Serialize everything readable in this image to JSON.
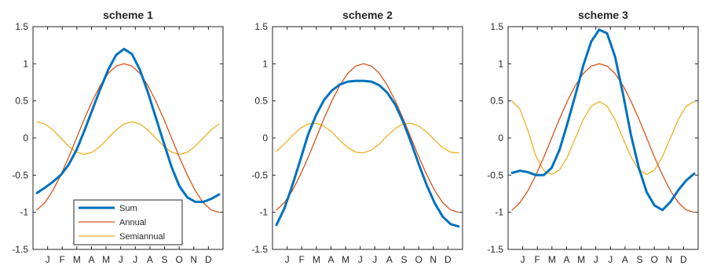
{
  "chart_data": [
    {
      "type": "line",
      "title": "scheme 1",
      "xlabel": "",
      "ylabel": "",
      "x_ticks": [
        "J",
        "F",
        "M",
        "A",
        "M",
        "J",
        "J",
        "A",
        "S",
        "O",
        "N",
        "D"
      ],
      "ylim": [
        -1.5,
        1.5
      ],
      "yticks": [
        "1.5",
        "1",
        "0.5",
        "0",
        "-0.5",
        "-1",
        "-1.5"
      ],
      "grid": false,
      "legend": {
        "placement": "bottom-left",
        "entries": [
          "Sum",
          "Annual",
          "Semiannual"
        ]
      },
      "series": [
        {
          "name": "Sum",
          "color": "#0072BD",
          "values": [
            -0.74,
            -0.67,
            -0.59,
            -0.5,
            -0.36,
            -0.16,
            0.1,
            0.38,
            0.66,
            0.92,
            1.12,
            1.2,
            1.13,
            0.92,
            0.62,
            0.28,
            -0.06,
            -0.39,
            -0.65,
            -0.8,
            -0.86,
            -0.86,
            -0.82,
            -0.76
          ]
        },
        {
          "name": "Annual",
          "color": "#D95319",
          "values": [
            -0.97,
            -0.87,
            -0.71,
            -0.5,
            -0.26,
            0.0,
            0.26,
            0.5,
            0.71,
            0.87,
            0.97,
            1.0,
            0.97,
            0.87,
            0.71,
            0.5,
            0.26,
            0.0,
            -0.26,
            -0.5,
            -0.71,
            -0.87,
            -0.97,
            -1.0
          ]
        },
        {
          "name": "Semiannual",
          "color": "#EDB120",
          "values": [
            0.22,
            0.19,
            0.11,
            0.0,
            -0.11,
            -0.19,
            -0.22,
            -0.19,
            -0.11,
            0.0,
            0.11,
            0.19,
            0.22,
            0.19,
            0.11,
            0.0,
            -0.11,
            -0.19,
            -0.22,
            -0.19,
            -0.11,
            0.0,
            0.11,
            0.19
          ]
        }
      ]
    },
    {
      "type": "line",
      "title": "scheme 2",
      "xlabel": "",
      "ylabel": "",
      "x_ticks": [
        "J",
        "F",
        "M",
        "A",
        "M",
        "J",
        "J",
        "A",
        "S",
        "O",
        "N",
        "D"
      ],
      "ylim": [
        -1.5,
        1.5
      ],
      "yticks": [
        "1.5",
        "1",
        "0.5",
        "0",
        "-0.5",
        "-1",
        "-1.5"
      ],
      "grid": false,
      "series": [
        {
          "name": "Sum",
          "color": "#0072BD",
          "values": [
            -1.17,
            -0.95,
            -0.64,
            -0.3,
            0.05,
            0.31,
            0.51,
            0.64,
            0.72,
            0.76,
            0.77,
            0.77,
            0.76,
            0.71,
            0.61,
            0.45,
            0.22,
            -0.06,
            -0.36,
            -0.64,
            -0.88,
            -1.06,
            -1.16,
            -1.19
          ]
        },
        {
          "name": "Annual",
          "color": "#D95319",
          "values": [
            -0.97,
            -0.87,
            -0.71,
            -0.5,
            -0.26,
            0.0,
            0.26,
            0.5,
            0.71,
            0.87,
            0.97,
            1.0,
            0.97,
            0.87,
            0.71,
            0.5,
            0.26,
            0.0,
            -0.26,
            -0.5,
            -0.71,
            -0.87,
            -0.97,
            -1.0
          ]
        },
        {
          "name": "Semiannual",
          "color": "#EDB120",
          "values": [
            -0.18,
            -0.08,
            0.03,
            0.13,
            0.19,
            0.2,
            0.16,
            0.08,
            -0.03,
            -0.13,
            -0.19,
            -0.2,
            -0.16,
            -0.08,
            0.03,
            0.13,
            0.19,
            0.2,
            0.16,
            0.08,
            -0.03,
            -0.13,
            -0.19,
            -0.2
          ]
        }
      ]
    },
    {
      "type": "line",
      "title": "scheme 3",
      "xlabel": "",
      "ylabel": "",
      "x_ticks": [
        "J",
        "F",
        "M",
        "A",
        "M",
        "J",
        "J",
        "A",
        "S",
        "O",
        "N",
        "D"
      ],
      "ylim": [
        -1.5,
        1.5
      ],
      "yticks": [
        "1.5",
        "1",
        "0.5",
        "0",
        "-0.5",
        "-1",
        "-1.5"
      ],
      "grid": false,
      "series": [
        {
          "name": "Sum",
          "color": "#0072BD",
          "values": [
            -0.47,
            -0.44,
            -0.46,
            -0.5,
            -0.5,
            -0.4,
            -0.16,
            0.2,
            0.58,
            0.98,
            1.3,
            1.46,
            1.41,
            1.1,
            0.6,
            0.05,
            -0.4,
            -0.73,
            -0.91,
            -0.97,
            -0.86,
            -0.7,
            -0.57,
            -0.48
          ]
        },
        {
          "name": "Annual",
          "color": "#D95319",
          "values": [
            -0.97,
            -0.87,
            -0.71,
            -0.5,
            -0.26,
            0.0,
            0.26,
            0.5,
            0.71,
            0.87,
            0.97,
            1.0,
            0.97,
            0.87,
            0.71,
            0.5,
            0.26,
            0.0,
            -0.26,
            -0.5,
            -0.71,
            -0.87,
            -0.97,
            -1.0
          ]
        },
        {
          "name": "Semiannual",
          "color": "#EDB120",
          "values": [
            0.5,
            0.39,
            0.1,
            -0.24,
            -0.44,
            -0.49,
            -0.43,
            -0.25,
            0.0,
            0.25,
            0.43,
            0.49,
            0.43,
            0.25,
            0.0,
            -0.25,
            -0.43,
            -0.49,
            -0.43,
            -0.25,
            0.0,
            0.25,
            0.43,
            0.49
          ]
        }
      ]
    }
  ]
}
